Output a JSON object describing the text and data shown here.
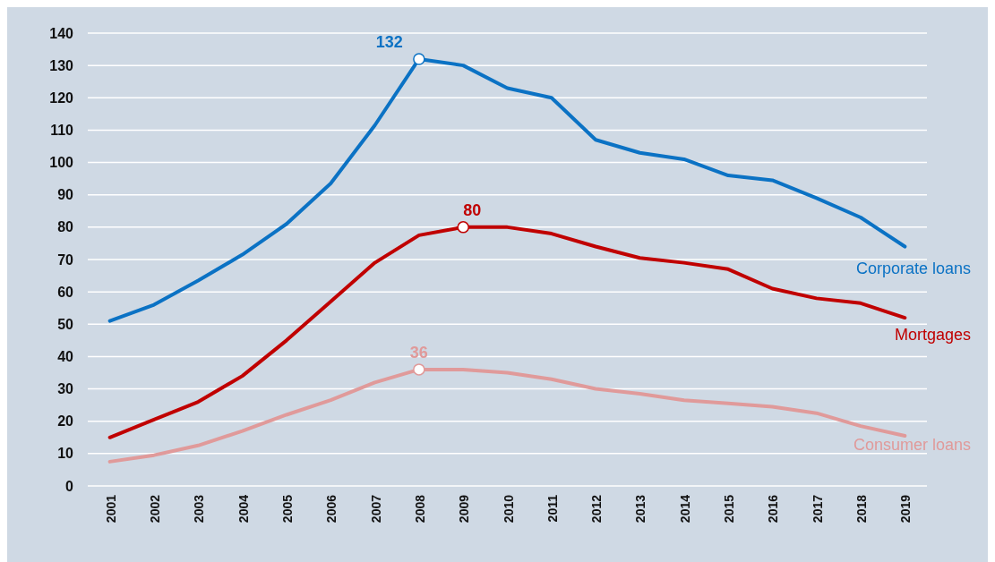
{
  "chart_data": {
    "type": "line",
    "categories": [
      "2001",
      "2002",
      "2003",
      "2004",
      "2005",
      "2006",
      "2007",
      "2008",
      "2009",
      "2010",
      "2011",
      "2012",
      "2013",
      "2014",
      "2015",
      "2016",
      "2017",
      "2018",
      "2019"
    ],
    "series": [
      {
        "name": "Corporate loans",
        "color": "#0b72c4",
        "values": [
          51,
          56,
          63.5,
          71.5,
          81,
          93.5,
          111.5,
          132,
          130,
          123,
          120,
          107,
          103,
          101,
          96,
          94.5,
          89,
          83,
          74
        ]
      },
      {
        "name": "Mortgages",
        "color": "#c00000",
        "values": [
          15,
          20.5,
          26,
          34,
          45,
          57,
          69,
          77.5,
          80,
          80,
          78,
          74,
          70.5,
          69,
          67,
          61,
          58,
          56.5,
          52
        ]
      },
      {
        "name": "Consumer loans",
        "color": "#e09a9a",
        "values": [
          7.5,
          9.5,
          12.5,
          17,
          22,
          26.5,
          32,
          36,
          36,
          35,
          33,
          30,
          28.5,
          26.5,
          25.5,
          24.5,
          22.5,
          18.5,
          15.5
        ]
      }
    ],
    "ylim": [
      0,
      140
    ],
    "yticks": [
      0,
      10,
      20,
      30,
      40,
      50,
      60,
      70,
      80,
      90,
      100,
      110,
      120,
      130,
      140
    ],
    "grid": "y",
    "legend": false,
    "line_style": "solid",
    "annotations": [
      {
        "text": "132",
        "x": "2008",
        "y": 132
      },
      {
        "text": "80",
        "x": "2009",
        "y": 80
      },
      {
        "text": "36",
        "x": "2008",
        "y": 36
      }
    ]
  }
}
